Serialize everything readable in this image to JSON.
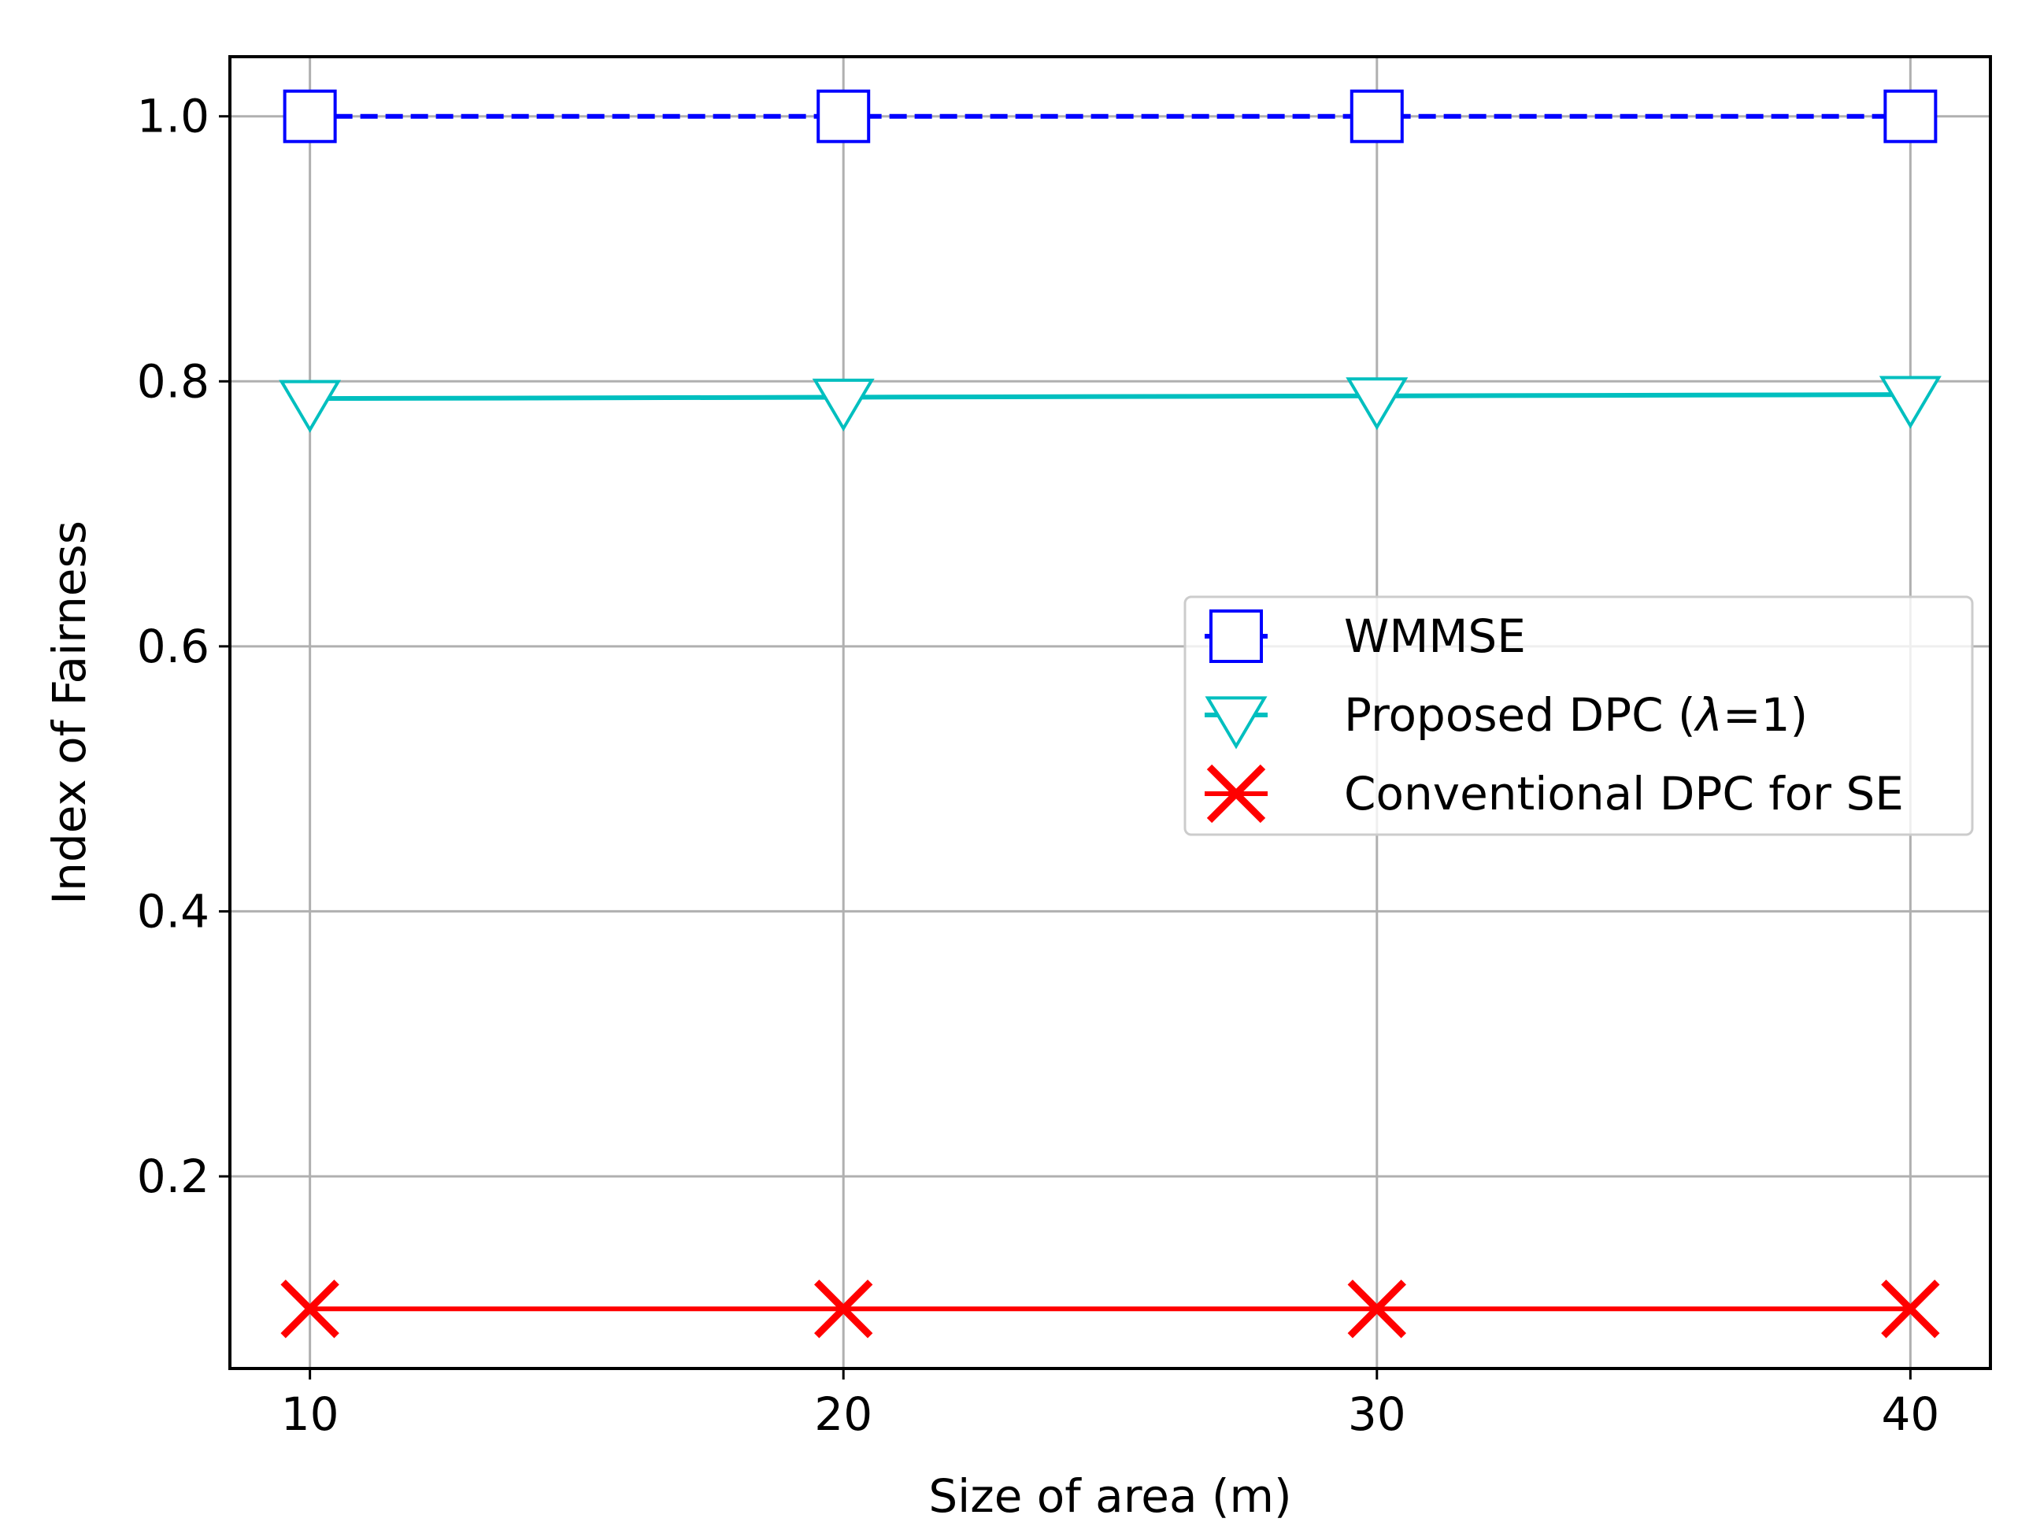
{
  "chart_data": {
    "type": "line",
    "title": "",
    "xlabel": "Size of area (m)",
    "ylabel": "Index of Fairness",
    "x": [
      10,
      20,
      30,
      40
    ],
    "xticks": [
      "10",
      "20",
      "30",
      "40"
    ],
    "yticks": [
      "0.2",
      "0.4",
      "0.6",
      "0.8",
      "1.0"
    ],
    "ytick_values": [
      0.2,
      0.4,
      0.6,
      0.8,
      1.0
    ],
    "xlim": [
      8.5,
      41.5
    ],
    "ylim": [
      0.055,
      1.045
    ],
    "grid": true,
    "legend_position": "center-right",
    "series": [
      {
        "name": "WMMSE",
        "values": [
          1.0,
          1.0,
          1.0,
          1.0
        ],
        "color": "#0000ff",
        "line_style": "dashed",
        "marker": "square-open"
      },
      {
        "name_prefix": "Proposed DPC (",
        "name_symbol": "λ",
        "name_suffix": "=1)",
        "values": [
          0.787,
          0.788,
          0.789,
          0.79
        ],
        "color": "#00bfbf",
        "line_style": "solid",
        "marker": "triangle-down-open"
      },
      {
        "name": "Conventional DPC for SE",
        "values": [
          0.1,
          0.1,
          0.1,
          0.1
        ],
        "color": "#ff0000",
        "line_style": "solid",
        "marker": "x"
      }
    ]
  }
}
